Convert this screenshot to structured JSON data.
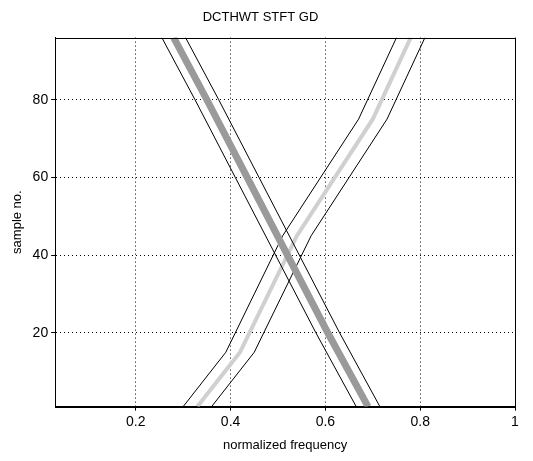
{
  "chart_data": {
    "type": "line",
    "title": "DCTHWT STFT GD",
    "x_label": "normalized frequency",
    "y_label": "sample no.",
    "xlim": [
      0.03,
      1
    ],
    "xticks": [
      0.2,
      0.4,
      0.6,
      0.8,
      1
    ],
    "ylim": [
      1,
      96
    ],
    "yticks": [
      20,
      40,
      60,
      80
    ],
    "grid": true,
    "series": [
      {
        "color": "#9a9a9a",
        "line_style": "solid",
        "marker": "none",
        "x": [
          0.69,
          0.605,
          0.52,
          0.435,
          0.35,
          0.28
        ],
        "values": [
          1,
          20,
          40,
          60,
          80,
          96
        ]
      },
      {
        "color": "#000000",
        "line_style": "solid",
        "marker": "none",
        "x": [
          0.665,
          0.58,
          0.495,
          0.41,
          0.325,
          0.255
        ],
        "values": [
          1,
          20,
          40,
          60,
          80,
          96
        ]
      },
      {
        "color": "#000000",
        "line_style": "solid",
        "marker": "none",
        "x": [
          0.715,
          0.63,
          0.545,
          0.46,
          0.375,
          0.305
        ],
        "values": [
          1,
          20,
          40,
          60,
          80,
          96
        ]
      },
      {
        "color": "#d0d0d0",
        "line_style": "solid",
        "marker": "none",
        "x": [
          0.33,
          0.42,
          0.48,
          0.54,
          0.62,
          0.7,
          0.78
        ],
        "values": [
          1,
          15,
          30,
          45,
          60,
          75,
          96
        ]
      },
      {
        "color": "#000000",
        "line_style": "solid",
        "marker": "none",
        "x": [
          0.3,
          0.39,
          0.45,
          0.51,
          0.59,
          0.67,
          0.75
        ],
        "values": [
          1,
          15,
          30,
          45,
          60,
          75,
          96
        ]
      },
      {
        "color": "#000000",
        "line_style": "solid",
        "marker": "none",
        "x": [
          0.36,
          0.45,
          0.51,
          0.57,
          0.65,
          0.73,
          0.81
        ],
        "values": [
          1,
          15,
          30,
          45,
          60,
          75,
          96
        ]
      }
    ]
  }
}
